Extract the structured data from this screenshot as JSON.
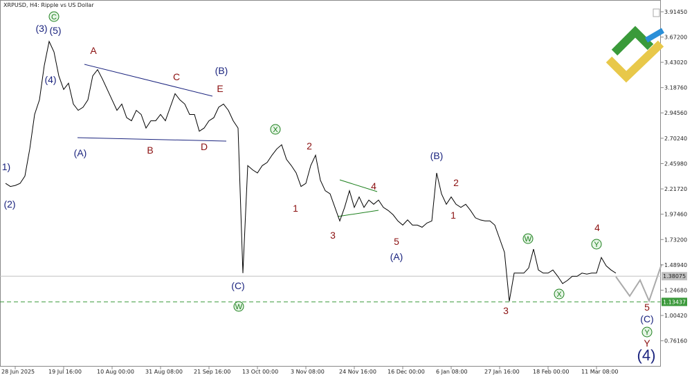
{
  "chart_data": {
    "type": "line",
    "title": "XRPUSD, H4:  Ripple vs US Dollar",
    "categories": [
      null,
      null,
      "28 Jun 2025",
      null,
      null,
      null,
      null,
      null,
      null,
      null,
      null,
      null,
      "19 Jul 16:00",
      null,
      null,
      null,
      null,
      null,
      null,
      null,
      null,
      null,
      "10 Aug 00:00",
      null,
      null,
      null,
      null,
      null,
      null,
      null,
      null,
      null,
      "31 Aug 08:00",
      null,
      null,
      null,
      null,
      null,
      null,
      null,
      null,
      null,
      "21 Sep 16:00",
      null,
      null,
      null,
      null,
      null,
      null,
      null,
      null,
      null,
      "13 Oct 00:00",
      null,
      null,
      null,
      null,
      null,
      null,
      null,
      null,
      null,
      "3 Nov 08:00",
      null,
      null,
      null,
      null,
      null,
      null,
      null,
      null,
      null,
      "24 Nov 16:00",
      null,
      null,
      null,
      null,
      null,
      null,
      null,
      null,
      null,
      "16 Dec 00:00",
      null,
      null,
      null,
      null,
      null,
      null,
      null,
      null,
      null,
      "6 Jan 08:00",
      null,
      null,
      null,
      null,
      null,
      null,
      null,
      null,
      null,
      "27 Jan 16:00",
      null,
      null,
      null,
      null,
      null,
      null,
      null,
      null,
      null,
      "18 Feb 00:00",
      null,
      null,
      null,
      null,
      null,
      null,
      null,
      null,
      null,
      "11 Mar 08:00",
      null,
      null,
      null,
      null
    ],
    "values": [
      2.27,
      2.24,
      2.25,
      2.27,
      2.34,
      2.6,
      2.93,
      3.07,
      3.4,
      3.63,
      3.53,
      3.3,
      3.17,
      3.23,
      3.03,
      2.97,
      3.0,
      3.07,
      3.3,
      3.36,
      3.27,
      3.17,
      3.07,
      2.97,
      3.03,
      2.9,
      2.87,
      2.97,
      2.93,
      2.8,
      2.87,
      2.87,
      2.93,
      2.87,
      3.0,
      3.13,
      3.07,
      3.03,
      2.93,
      2.93,
      2.77,
      2.8,
      2.87,
      2.9,
      3.0,
      3.03,
      2.97,
      2.87,
      2.8,
      1.41,
      2.44,
      2.4,
      2.37,
      2.44,
      2.47,
      2.54,
      2.6,
      2.64,
      2.5,
      2.44,
      2.37,
      2.24,
      2.27,
      2.44,
      2.54,
      2.3,
      2.2,
      2.17,
      2.04,
      1.91,
      2.04,
      2.2,
      2.04,
      2.14,
      2.04,
      2.11,
      2.07,
      2.11,
      2.04,
      2.01,
      1.97,
      1.91,
      1.87,
      1.92,
      1.87,
      1.87,
      1.85,
      1.89,
      1.91,
      2.37,
      2.17,
      2.07,
      2.14,
      2.07,
      2.04,
      2.07,
      2.01,
      1.94,
      1.92,
      1.91,
      1.91,
      1.87,
      1.74,
      1.61,
      1.14,
      1.41,
      1.41,
      1.41,
      1.46,
      1.64,
      1.44,
      1.41,
      1.41,
      1.44,
      1.38,
      1.31,
      1.34,
      1.38,
      1.38,
      1.41,
      1.4,
      1.41,
      1.41,
      1.56,
      1.48,
      1.44,
      1.41
    ],
    "color": "#000000",
    "ylim": [
      0.514,
      4.014
    ],
    "yticks": [
      {
        "value": 3.9145,
        "label": "3.91450"
      },
      {
        "value": 3.672,
        "label": "3.67200"
      },
      {
        "value": 3.4302,
        "label": "3.43020"
      },
      {
        "value": 3.1876,
        "label": "3.18760"
      },
      {
        "value": 2.9456,
        "label": "2.94560"
      },
      {
        "value": 2.7024,
        "label": "2.70240"
      },
      {
        "value": 2.4598,
        "label": "2.45980"
      },
      {
        "value": 2.2172,
        "label": "2.21720"
      },
      {
        "value": 1.9746,
        "label": "1.97460"
      },
      {
        "value": 1.732,
        "label": "1.73200"
      },
      {
        "value": 1.4894,
        "label": "1.48940"
      },
      {
        "value": 1.2468,
        "label": "1.24680"
      },
      {
        "value": 1.0042,
        "label": "1.00420"
      },
      {
        "value": 0.7616,
        "label": "0.76160"
      }
    ],
    "price_lines": [
      {
        "value": 1.38075,
        "color": "#c0c0c0"
      },
      {
        "value": 1.13437,
        "color": "#3c9a3c"
      }
    ],
    "wave_labels": [
      {
        "text": "1)"
      },
      {
        "text": "(2)"
      },
      {
        "text": "(3)"
      },
      {
        "text": "(5)"
      },
      {
        "text": "(4)"
      },
      {
        "text": "(A)"
      },
      {
        "text": "(B)"
      },
      {
        "text": "(C)"
      },
      {
        "text": "(B)"
      },
      {
        "text": "(A)"
      },
      {
        "text": "(C)"
      },
      {
        "text": "(4)"
      },
      {
        "text": "A"
      },
      {
        "text": "C"
      },
      {
        "text": "E"
      },
      {
        "text": "B"
      },
      {
        "text": "D"
      },
      {
        "text": "2"
      },
      {
        "text": "1"
      },
      {
        "text": "3"
      },
      {
        "text": "4"
      },
      {
        "text": "5"
      },
      {
        "text": "2"
      },
      {
        "text": "1"
      },
      {
        "text": "3"
      },
      {
        "text": "4"
      },
      {
        "text": "5"
      },
      {
        "text": "Y"
      },
      {
        "text": "C"
      },
      {
        "text": "X"
      },
      {
        "text": "W"
      },
      {
        "text": "W"
      },
      {
        "text": "X"
      },
      {
        "text": "Y"
      },
      {
        "text": "Y"
      }
    ]
  }
}
